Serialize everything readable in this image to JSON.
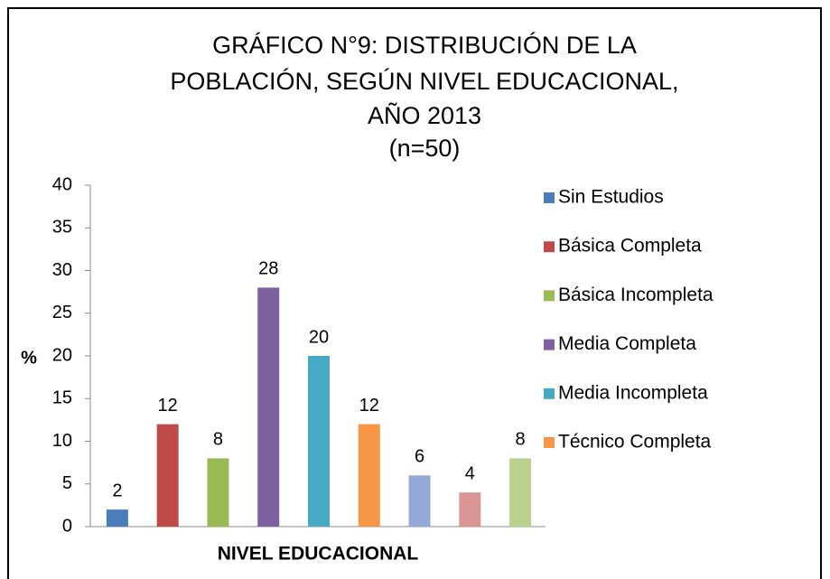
{
  "chart_data": {
    "type": "bar",
    "title": [
      "GRÁFICO N°9: DISTRIBUCIÓN DE LA",
      "POBLACIÓN, SEGÚN NIVEL EDUCACIONAL,",
      "AÑO 2013",
      "(n=50)"
    ],
    "xlabel": "NIVEL EDUCACIONAL",
    "ylabel": "%",
    "categories": [
      null
    ],
    "series": [
      {
        "name": "Sin Estudios",
        "color": "#4a7ebb",
        "values": [
          2
        ]
      },
      {
        "name": "Básica Completa",
        "color": "#be4b48",
        "values": [
          12
        ]
      },
      {
        "name": "Básica Incompleta",
        "color": "#98b954",
        "values": [
          8
        ]
      },
      {
        "name": "Media Completa",
        "color": "#7d60a0",
        "values": [
          28
        ]
      },
      {
        "name": "Media Incompleta",
        "color": "#46aac5",
        "values": [
          20
        ]
      },
      {
        "name": "Técnico Completa",
        "color": "#f79646",
        "values": [
          12
        ]
      },
      {
        "color": "#95a9d8",
        "values": [
          6
        ]
      },
      {
        "color": "#d99694",
        "values": [
          4
        ]
      },
      {
        "color": "#b9d08f",
        "values": [
          8
        ]
      }
    ],
    "ylim": [
      0,
      40
    ],
    "yticks": [
      0,
      5,
      10,
      15,
      20,
      25,
      30,
      35,
      40
    ],
    "legend": "right"
  }
}
